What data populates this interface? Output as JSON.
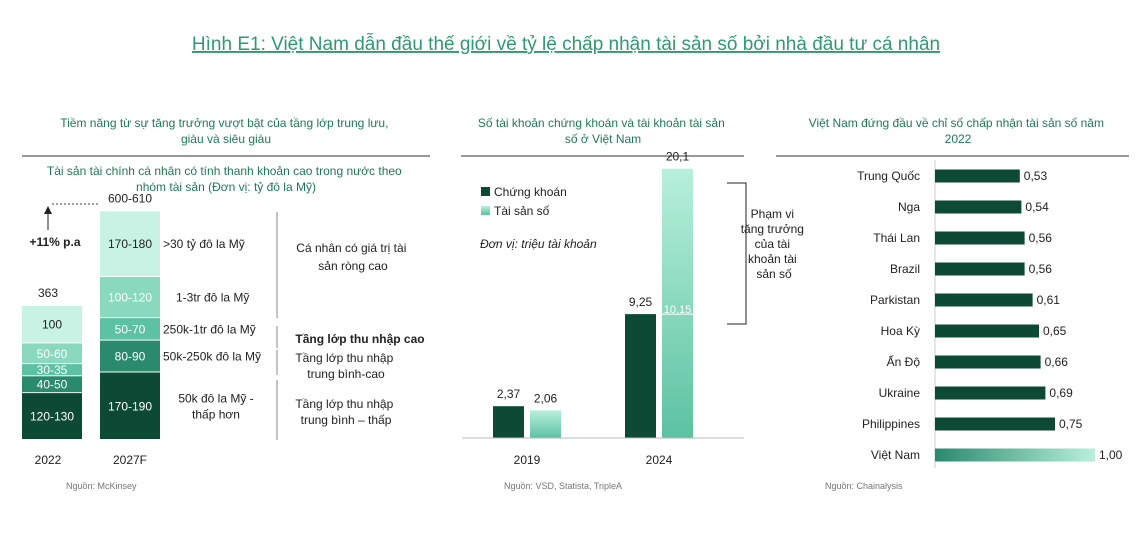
{
  "title": "Hình E1: Việt Nam dẫn đầu thế giới về tỷ lệ chấp nhận tài sản số bởi nhà đầu tư cá nhân",
  "colors": {
    "title": "#2f9a6f",
    "heading": "#1f7a52",
    "dark": "#0d4a35",
    "mid": "#2a8a6c",
    "light": "#5cc2a1",
    "pale": "#8ad9bf",
    "palest": "#c8f2e3",
    "digital": "#a9ead4",
    "rule": "#333333"
  },
  "panel1": {
    "heading": "Tiềm năng từ sự tăng trưởng vượt bật của tầng lớp trung lưu, giàu và siêu giàu",
    "subheading": "Tài sản tài chính cá nhân có tính thanh khoản cao trong nước theo nhóm tài sản (Đơn vị: tỷ đô la Mỹ)",
    "growth_label": "+11% p.a",
    "source": "Nguồn: McKinsey",
    "chart_data": {
      "type": "bar",
      "stacked": true,
      "categories": [
        "2022",
        "2027F"
      ],
      "totals": [
        "363",
        "600-610"
      ],
      "series": [
        {
          "name": "50k đô la Mỹ - thấp hơn",
          "values": [
            125,
            180
          ],
          "labels": [
            "120-130",
            "170-190"
          ]
        },
        {
          "name": "50k-250k đô la Mỹ",
          "values": [
            45,
            85
          ],
          "labels": [
            "40-50",
            "80-90"
          ]
        },
        {
          "name": "250k-1tr đô la Mỹ",
          "values": [
            32.5,
            60
          ],
          "labels": [
            "30-35",
            "50-70"
          ]
        },
        {
          "name": "1-3tr đô la Mỹ",
          "values": [
            55,
            110
          ],
          "labels": [
            "50-60",
            "100-120"
          ]
        },
        {
          "name": ">30 tỷ đô la Mỹ",
          "values": [
            100,
            175
          ],
          "labels": [
            "100",
            "170-180"
          ]
        }
      ],
      "groups": [
        {
          "text": "Cá nhân có giá trị tài sản ròng cao",
          "bold": false
        },
        {
          "text": "Tầng lớp thu nhập cao",
          "bold": true
        },
        {
          "text": "Tầng lớp thu nhập trung bình-cao",
          "bold": false
        },
        {
          "text": "Tầng lớp thu nhập trung bình – thấp",
          "bold": false
        }
      ]
    }
  },
  "panel2": {
    "heading": "Số tài khoản chứng khoán và tài khoản tài sản số ở Việt Nam",
    "unit": "Đơn vị: triệu tài khoản",
    "annotation": "Phạm vi tăng trưởng của tài khoản tài sản số",
    "source": "Nguồn: VSD, Statista, TripleA",
    "chart_data": {
      "type": "bar",
      "categories": [
        "2019",
        "2024"
      ],
      "series": [
        {
          "name": "Chứng khoán",
          "values": [
            2.37,
            9.25
          ],
          "labels": [
            "2,37",
            "9,25"
          ]
        },
        {
          "name": "Tài sản số",
          "values": [
            2.06,
            20.1
          ],
          "labels": [
            "2,06",
            "20,1"
          ]
        }
      ],
      "range_label": "10,15",
      "legend": "top-left"
    }
  },
  "panel3": {
    "heading": "Việt Nam đứng đầu về chỉ số chấp nhận tài sản số năm 2022",
    "source": "Nguồn: Chainalysis",
    "chart_data": {
      "type": "bar",
      "orientation": "horizontal",
      "categories": [
        "Trung Quốc",
        "Nga",
        "Thái Lan",
        "Brazil",
        "Parkistan",
        "Hoa Kỳ",
        "Ấn Độ",
        "Ukraine",
        "Philippines",
        "Việt Nam"
      ],
      "values": [
        0.53,
        0.54,
        0.56,
        0.56,
        0.61,
        0.65,
        0.66,
        0.69,
        0.75,
        1.0
      ],
      "labels": [
        "0,53",
        "0,54",
        "0,56",
        "0,56",
        "0,61",
        "0,65",
        "0,66",
        "0,69",
        "0,75",
        "1,00"
      ],
      "xlim": [
        0,
        1
      ]
    }
  }
}
